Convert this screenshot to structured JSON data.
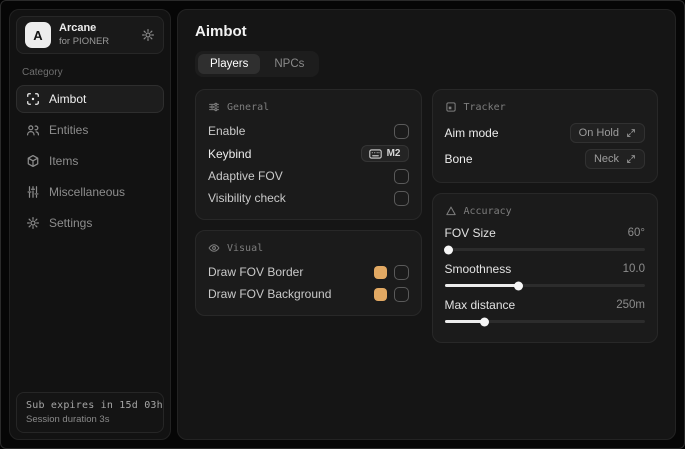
{
  "sidebar": {
    "brand": {
      "logo_letter": "A",
      "name": "Arcane",
      "subtitle": "for PIONER"
    },
    "category_label": "Category",
    "items": [
      {
        "label": "Aimbot",
        "icon": "crosshair-scan-icon",
        "active": true
      },
      {
        "label": "Entities",
        "icon": "users-icon",
        "active": false
      },
      {
        "label": "Items",
        "icon": "box-icon",
        "active": false
      },
      {
        "label": "Miscellaneous",
        "icon": "sliders-icon",
        "active": false
      },
      {
        "label": "Settings",
        "icon": "gear-icon",
        "active": false
      }
    ],
    "footer": {
      "line1": "Sub expires in 15d 03h",
      "line2": "Session duration 3s"
    }
  },
  "main": {
    "title": "Aimbot",
    "tabs": [
      {
        "label": "Players",
        "active": true
      },
      {
        "label": "NPCs",
        "active": false
      }
    ],
    "general": {
      "title": "General",
      "rows": [
        {
          "label": "Enable",
          "control": "checkbox",
          "checked": false
        },
        {
          "label": "Keybind",
          "control": "keybind",
          "value": "M2"
        },
        {
          "label": "Adaptive FOV",
          "control": "checkbox",
          "checked": false
        },
        {
          "label": "Visibility check",
          "control": "checkbox",
          "checked": false
        }
      ]
    },
    "visual": {
      "title": "Visual",
      "rows": [
        {
          "label": "Draw FOV Border",
          "color": "#e2a963",
          "checked": false
        },
        {
          "label": "Draw FOV Background",
          "color": "#e2a963",
          "checked": false
        }
      ]
    },
    "tracker": {
      "title": "Tracker",
      "rows": [
        {
          "label": "Aim mode",
          "value": "On Hold"
        },
        {
          "label": "Bone",
          "value": "Neck"
        }
      ]
    },
    "accuracy": {
      "title": "Accuracy",
      "rows": [
        {
          "label": "FOV Size",
          "value": "60°",
          "percent": 2
        },
        {
          "label": "Smoothness",
          "value": "10.0",
          "percent": 37
        },
        {
          "label": "Max distance",
          "value": "250m",
          "percent": 20
        }
      ]
    },
    "colors": {
      "accent_swatch": "#e2a963"
    }
  }
}
